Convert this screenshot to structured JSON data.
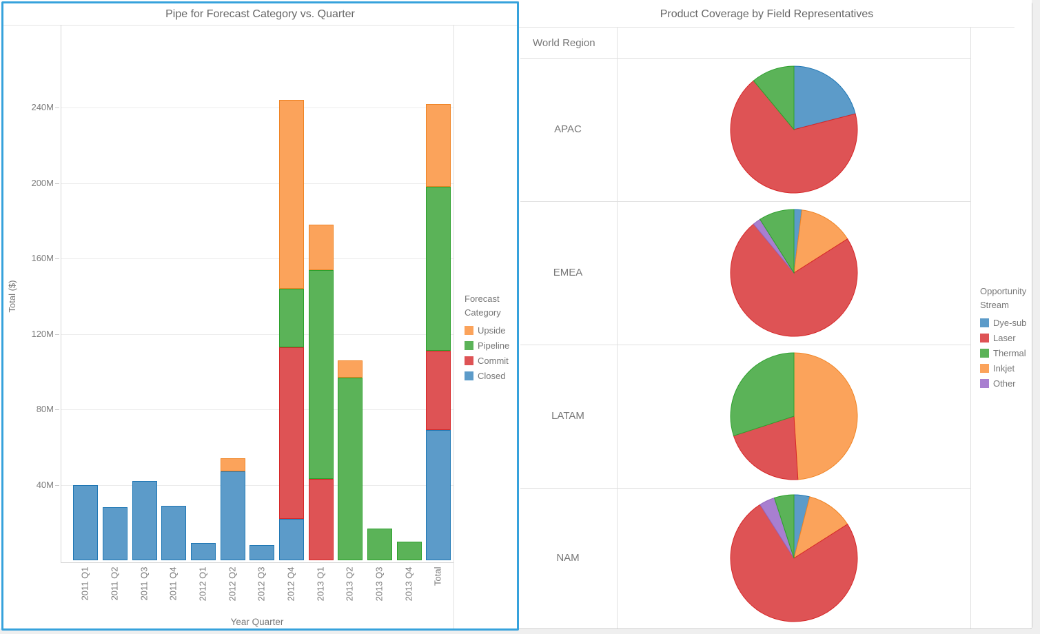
{
  "left_panel": {
    "title": "Pipe for Forecast Category vs. Quarter",
    "legend": {
      "title_lines": [
        "Forecast",
        "Category"
      ],
      "items": [
        {
          "label": "Upside",
          "color": "#FBA35B"
        },
        {
          "label": "Pipeline",
          "color": "#5BB358"
        },
        {
          "label": "Commit",
          "color": "#DE5355"
        },
        {
          "label": "Closed",
          "color": "#5C9BC9"
        }
      ]
    }
  },
  "right_panel": {
    "title": "Product Coverage by Field Representatives",
    "row_header": "World Region",
    "legend": {
      "title_lines": [
        "Opportunity",
        "Stream"
      ],
      "items": [
        {
          "label": "Dye-sub",
          "color": "#5C9BC9"
        },
        {
          "label": "Laser",
          "color": "#DE5355"
        },
        {
          "label": "Thermal",
          "color": "#5BB358"
        },
        {
          "label": "Inkjet",
          "color": "#FBA35B"
        },
        {
          "label": "Other",
          "color": "#A87FD0"
        }
      ]
    }
  },
  "series_colors": {
    "Upside": {
      "fill": "#FBA35B",
      "stroke": "#EF8424"
    },
    "Pipeline": {
      "fill": "#5BB358",
      "stroke": "#2CA02C"
    },
    "Commit": {
      "fill": "#DE5355",
      "stroke": "#D62728"
    },
    "Closed": {
      "fill": "#5C9BC9",
      "stroke": "#1F77B4"
    },
    "Dye-sub": {
      "fill": "#5C9BC9",
      "stroke": "#1F77B4"
    },
    "Laser": {
      "fill": "#DE5355",
      "stroke": "#D62728"
    },
    "Thermal": {
      "fill": "#5BB358",
      "stroke": "#2CA02C"
    },
    "Inkjet": {
      "fill": "#FBA35B",
      "stroke": "#EF8424"
    },
    "Other": {
      "fill": "#A87FD0",
      "stroke": "#9467BD"
    }
  },
  "chart_data": [
    {
      "type": "bar",
      "stacked": true,
      "title": "Pipe for Forecast Category vs. Quarter",
      "xlabel": "Year Quarter",
      "ylabel": "Total ($)",
      "unit": "M",
      "grid": true,
      "legend_position": "right",
      "ylim": [
        0,
        284
      ],
      "yticks": [
        40,
        80,
        120,
        160,
        200,
        240
      ],
      "ytick_labels": [
        "40M",
        "80M",
        "120M",
        "160M",
        "200M",
        "240M"
      ],
      "categories": [
        "2011 Q1",
        "2011 Q2",
        "2011 Q3",
        "2011 Q4",
        "2012 Q1",
        "2012 Q2",
        "2012 Q3",
        "2012 Q4",
        "2013 Q1",
        "2013 Q2",
        "2013 Q3",
        "2013 Q4",
        "Total"
      ],
      "series": [
        {
          "name": "Closed",
          "values": [
            40,
            28,
            42,
            29,
            9,
            47,
            8,
            22,
            0,
            0,
            0,
            0,
            69
          ]
        },
        {
          "name": "Commit",
          "values": [
            0,
            0,
            0,
            0,
            0,
            0,
            0,
            91,
            43,
            0,
            0,
            0,
            42
          ]
        },
        {
          "name": "Pipeline",
          "values": [
            0,
            0,
            0,
            0,
            0,
            0,
            0,
            31,
            111,
            97,
            17,
            10,
            87
          ]
        },
        {
          "name": "Upside",
          "values": [
            0,
            0,
            0,
            0,
            0,
            7,
            0,
            100,
            24,
            9,
            0,
            0,
            44
          ]
        }
      ]
    },
    {
      "type": "pie",
      "title": "Product Coverage by Field Representatives",
      "group_header": "World Region",
      "legend_title": "Opportunity Stream",
      "legend_position": "right",
      "pies": [
        {
          "region": "APAC",
          "slices": [
            {
              "stream": "Dye-sub",
              "pct": 21
            },
            {
              "stream": "Laser",
              "pct": 68
            },
            {
              "stream": "Thermal",
              "pct": 11
            }
          ]
        },
        {
          "region": "EMEA",
          "slices": [
            {
              "stream": "Dye-sub",
              "pct": 2
            },
            {
              "stream": "Inkjet",
              "pct": 14
            },
            {
              "stream": "Laser",
              "pct": 73
            },
            {
              "stream": "Other",
              "pct": 2
            },
            {
              "stream": "Thermal",
              "pct": 9
            }
          ]
        },
        {
          "region": "LATAM",
          "slices": [
            {
              "stream": "Inkjet",
              "pct": 49
            },
            {
              "stream": "Laser",
              "pct": 21
            },
            {
              "stream": "Thermal",
              "pct": 30
            }
          ]
        },
        {
          "region": "NAM",
          "slices": [
            {
              "stream": "Dye-sub",
              "pct": 4
            },
            {
              "stream": "Inkjet",
              "pct": 12
            },
            {
              "stream": "Laser",
              "pct": 75
            },
            {
              "stream": "Other",
              "pct": 4
            },
            {
              "stream": "Thermal",
              "pct": 5
            }
          ]
        }
      ]
    }
  ]
}
